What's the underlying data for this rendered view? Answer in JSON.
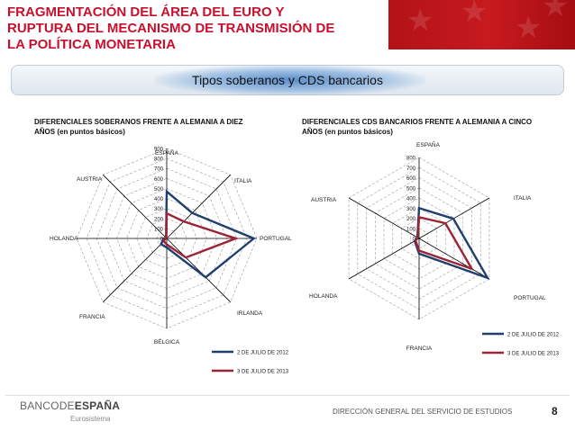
{
  "header": {
    "title_lines": [
      "FRAGMENTACIÓN DEL ÁREA DEL EURO Y",
      "RUPTURA DEL MECANISMO DE TRANSMISIÓN DE",
      "LA POLÍTICA MONETARIA"
    ]
  },
  "banner": {
    "text": "Tipos soberanos y CDS bancarios"
  },
  "footer": {
    "logo_part1": "BANCO",
    "logo_part2": "DE",
    "logo_part3": "ESPAÑA",
    "logo_sub": "Eurosistema",
    "text": "DIRECCIÓN GENERAL DEL SERVICIO DE ESTUDIOS",
    "page": "8"
  },
  "colors": {
    "series1": "#1f3f6e",
    "series2": "#9b2335",
    "title_red": "#c8102e"
  },
  "chart_data": [
    {
      "type": "radar",
      "title_lines": [
        "DIFERENCIALES SOBERANOS  FRENTE  A ALEMANIA A DIEZ",
        "AÑOS (en puntos básicos)"
      ],
      "axes": [
        "ESPAÑA",
        "ITALIA",
        "PORTUGAL",
        "IRLANDA",
        "BÉLGICA",
        "FRANCIA",
        "HOLANDA",
        "AUSTRIA"
      ],
      "rmax": 900,
      "tick_labels": [
        "0",
        "100",
        "200",
        "300",
        "400",
        "500",
        "600",
        "700",
        "800",
        "900"
      ],
      "legend_position": "bottom-right",
      "series": [
        {
          "name": "2 DE JULIO DE 2012",
          "values": [
            470,
            360,
            870,
            550,
            90,
            80,
            30,
            10
          ]
        },
        {
          "name": "3 DE JULIO DE 2013",
          "values": [
            250,
            240,
            690,
            270,
            60,
            40,
            20,
            5
          ]
        }
      ]
    },
    {
      "type": "radar",
      "title_lines": [
        "DIFERENCIALES CDS BANCARIOS FRENTE  A ALEMANIA A CINCO",
        "AÑOS (en puntos básicos)"
      ],
      "axes": [
        "ESPAÑA",
        "ITALIA",
        "PORTUGAL",
        "FRANCIA",
        "HOLANDA",
        "AUSTRIA"
      ],
      "rmax": 800,
      "tick_labels": [
        "0",
        "100",
        "200",
        "300",
        "400",
        "500",
        "600",
        "700",
        "800"
      ],
      "legend_position": "bottom-right",
      "series": [
        {
          "name": "2 DE JULIO DE 2012",
          "values": [
            300,
            390,
            780,
            150,
            50,
            20
          ]
        },
        {
          "name": "3 DE JULIO DE 2013",
          "values": [
            210,
            300,
            600,
            120,
            40,
            15
          ]
        }
      ]
    }
  ]
}
